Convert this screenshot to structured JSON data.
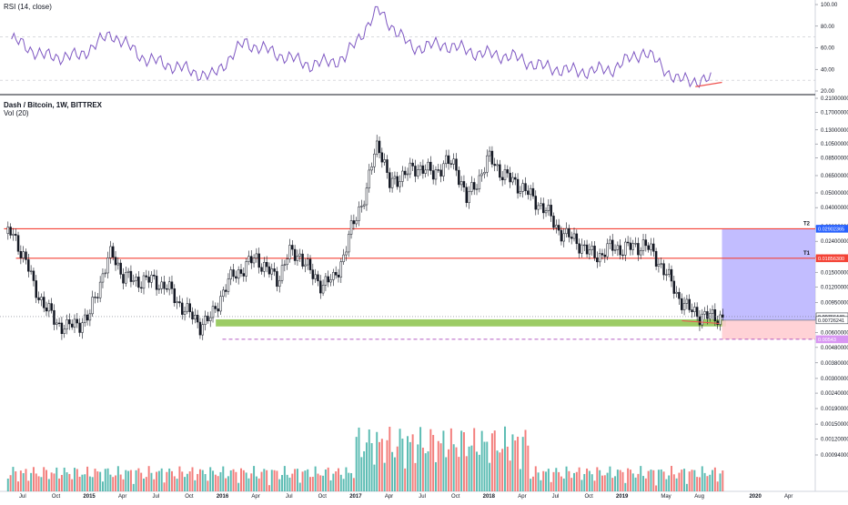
{
  "rsi_pane": {
    "title": "RSI (14, close)",
    "axis_ticks": [
      "100.00",
      "80.00",
      "60.00",
      "40.00",
      "20.00"
    ],
    "band_levels": [
      70,
      30
    ]
  },
  "price_pane": {
    "title": "Dash / Bitcoin, 1W, BITTREX",
    "volume_label": "Vol (20)",
    "axis_ticks": [
      "0.21000000",
      "0.17000000",
      "0.13000000",
      "0.10500000",
      "0.08500000",
      "0.06500000",
      "0.05000000",
      "0.04000000",
      "0.03000000",
      "0.02400000",
      "0.01900000",
      "0.01500000",
      "0.01200000",
      "0.00950000",
      "0.00600000",
      "0.00480000",
      "0.00380000",
      "0.00300000",
      "0.00240000",
      "0.00190000",
      "0.00150000",
      "0.00120000",
      "0.00094000"
    ],
    "price_badges": [
      {
        "label": "0.02902365",
        "color": "#2962ff"
      },
      {
        "label": "0.01856300",
        "color": "#f44336"
      },
      {
        "label": "0.00766440",
        "color": "#ffffff"
      },
      {
        "label": "0.00726241",
        "color": "#ffffff"
      },
      {
        "label": "0.00543",
        "color": "#d896f2"
      }
    ],
    "targets": [
      {
        "name": "T2",
        "price": 0.02902365
      },
      {
        "name": "T1",
        "price": 0.018563
      }
    ],
    "colors": {
      "up": "#26a69a",
      "down": "#ef5350",
      "candle": "#131722",
      "rsi_line": "#7e57c2",
      "resistance": "#f44336",
      "support_zone": "#8bc34a",
      "target_zone": "#b7b2ff",
      "stop_zone": "#ffcdd2",
      "dashed_support": "#9c27b0"
    }
  },
  "time_axis": {
    "labels": [
      "Jul",
      "Oct",
      "2015",
      "Apr",
      "Jul",
      "Oct",
      "2016",
      "Apr",
      "Jul",
      "Oct",
      "2017",
      "Apr",
      "Jul",
      "Oct",
      "2018",
      "Apr",
      "Jul",
      "Oct",
      "2019",
      "May",
      "Aug",
      "2020",
      "Apr"
    ]
  },
  "chart_data": {
    "type": "line",
    "title": "Dash / Bitcoin, 1W, BITTREX",
    "scale": "log",
    "series": [
      {
        "name": "Dash / Bitcoin",
        "x": [
          "2014-06",
          "2014-07",
          "2014-08",
          "2014-09",
          "2014-10",
          "2014-11",
          "2014-12",
          "2015-01",
          "2015-02",
          "2015-03",
          "2015-04",
          "2015-05",
          "2015-06",
          "2015-07",
          "2015-08",
          "2015-09",
          "2015-10",
          "2015-11",
          "2015-12",
          "2016-01",
          "2016-02",
          "2016-03",
          "2016-04",
          "2016-05",
          "2016-06",
          "2016-07",
          "2016-08",
          "2016-09",
          "2016-10",
          "2016-11",
          "2016-12",
          "2017-01",
          "2017-02",
          "2017-03",
          "2017-04",
          "2017-05",
          "2017-06",
          "2017-07",
          "2017-08",
          "2017-09",
          "2017-10",
          "2017-11",
          "2017-12",
          "2018-01",
          "2018-02",
          "2018-03",
          "2018-04",
          "2018-05",
          "2018-06",
          "2018-07",
          "2018-08",
          "2018-09",
          "2018-10",
          "2018-11",
          "2018-12",
          "2019-01",
          "2019-02",
          "2019-03",
          "2019-04",
          "2019-05",
          "2019-06",
          "2019-07",
          "2019-08",
          "2019-09",
          "2019-10"
        ],
        "values": [
          0.027,
          0.02,
          0.012,
          0.009,
          0.007,
          0.0065,
          0.007,
          0.0075,
          0.013,
          0.02,
          0.0145,
          0.013,
          0.0135,
          0.013,
          0.012,
          0.0095,
          0.008,
          0.0068,
          0.0075,
          0.011,
          0.0145,
          0.016,
          0.019,
          0.0155,
          0.0135,
          0.02,
          0.0195,
          0.0145,
          0.0125,
          0.0135,
          0.0195,
          0.035,
          0.05,
          0.11,
          0.055,
          0.065,
          0.07,
          0.075,
          0.065,
          0.08,
          0.075,
          0.045,
          0.06,
          0.085,
          0.07,
          0.06,
          0.055,
          0.045,
          0.04,
          0.03,
          0.026,
          0.024,
          0.02,
          0.0195,
          0.022,
          0.0215,
          0.022,
          0.023,
          0.019,
          0.0145,
          0.0105,
          0.0085,
          0.0079,
          0.0076,
          0.0077
        ]
      },
      {
        "name": "RSI (14, close)",
        "x": [
          "2014-06",
          "2014-09",
          "2014-12",
          "2015-03",
          "2015-06",
          "2015-09",
          "2015-12",
          "2016-03",
          "2016-06",
          "2016-09",
          "2016-12",
          "2017-03",
          "2017-06",
          "2017-09",
          "2017-12",
          "2018-03",
          "2018-06",
          "2018-09",
          "2018-12",
          "2019-03",
          "2019-06",
          "2019-09"
        ],
        "values": [
          68,
          52,
          52,
          73,
          50,
          42,
          33,
          65,
          54,
          44,
          50,
          95,
          60,
          63,
          55,
          52,
          42,
          38,
          40,
          57,
          30,
          30
        ]
      }
    ],
    "ylim": [
      0.00094,
      0.21
    ],
    "annotations": [
      "T2",
      "T1"
    ]
  }
}
